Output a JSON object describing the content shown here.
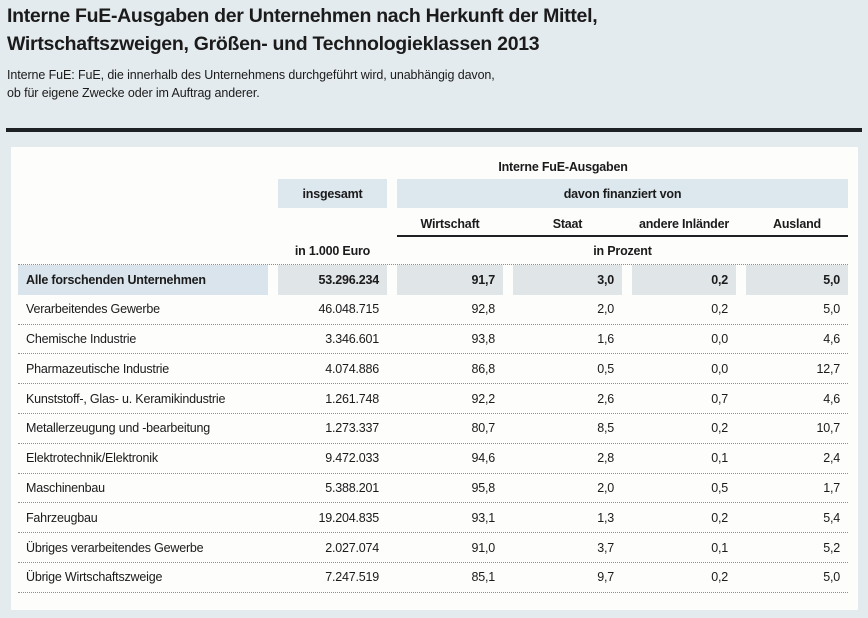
{
  "page": {
    "title_line1": "Interne FuE-Ausgaben der Unternehmen nach Herkunft der Mittel,",
    "title_line2": "Wirtschaftszweigen, Größen- und Technologieklassen 2013",
    "subtitle_line1": "Interne FuE: FuE, die innerhalb des Unternehmens durchgeführt wird, unabhängig davon,",
    "subtitle_line2": "ob für eigene Zwecke oder im Auftrag anderer."
  },
  "table": {
    "group_header": "Interne FuE-Ausgaben",
    "col_total": "insgesamt",
    "col_financed": "davon finanziert von",
    "sub_columns": [
      "Wirtschaft",
      "Staat",
      "andere Inländer",
      "Ausland"
    ],
    "unit_total": "in 1.000 Euro",
    "unit_percent": "in Prozent",
    "rows": [
      {
        "label": "Alle forschenden Unternehmen",
        "total": "53.296.234",
        "wirtschaft": "91,7",
        "staat": "3,0",
        "andere_inlaender": "0,2",
        "ausland": "5,0",
        "highlight": true
      },
      {
        "label": "Verarbeitendes Gewerbe",
        "total": "46.048.715",
        "wirtschaft": "92,8",
        "staat": "2,0",
        "andere_inlaender": "0,2",
        "ausland": "5,0",
        "highlight": false
      },
      {
        "label": "Chemische Industrie",
        "total": "3.346.601",
        "wirtschaft": "93,8",
        "staat": "1,6",
        "andere_inlaender": "0,0",
        "ausland": "4,6",
        "highlight": false
      },
      {
        "label": "Pharmazeutische Industrie",
        "total": "4.074.886",
        "wirtschaft": "86,8",
        "staat": "0,5",
        "andere_inlaender": "0,0",
        "ausland": "12,7",
        "highlight": false
      },
      {
        "label": "Kunststoff-, Glas- u. Keramikindustrie",
        "total": "1.261.748",
        "wirtschaft": "92,2",
        "staat": "2,6",
        "andere_inlaender": "0,7",
        "ausland": "4,6",
        "highlight": false
      },
      {
        "label": "Metallerzeugung und -bearbeitung",
        "total": "1.273.337",
        "wirtschaft": "80,7",
        "staat": "8,5",
        "andere_inlaender": "0,2",
        "ausland": "10,7",
        "highlight": false
      },
      {
        "label": "Elektrotechnik/Elektronik",
        "total": "9.472.033",
        "wirtschaft": "94,6",
        "staat": "2,8",
        "andere_inlaender": "0,1",
        "ausland": "2,4",
        "highlight": false
      },
      {
        "label": "Maschinenbau",
        "total": "5.388.201",
        "wirtschaft": "95,8",
        "staat": "2,0",
        "andere_inlaender": "0,5",
        "ausland": "1,7",
        "highlight": false
      },
      {
        "label": "Fahrzeugbau",
        "total": "19.204.835",
        "wirtschaft": "93,1",
        "staat": "1,3",
        "andere_inlaender": "0,2",
        "ausland": "5,4",
        "highlight": false
      },
      {
        "label": "Übriges verarbeitendes Gewerbe",
        "total": "2.027.074",
        "wirtschaft": "91,0",
        "staat": "3,7",
        "andere_inlaender": "0,1",
        "ausland": "5,2",
        "highlight": false
      },
      {
        "label": "Übrige Wirtschaftszweige",
        "total": "7.247.519",
        "wirtschaft": "85,1",
        "staat": "9,7",
        "andere_inlaender": "0,2",
        "ausland": "5,0",
        "highlight": false
      }
    ]
  },
  "colors": {
    "page_background": "#e4ebee",
    "panel_background": "#fdfdfc",
    "header_cell": "#dce7ee",
    "highlight_label": "#d9e4ec",
    "highlight_value": "#e0e5e8",
    "rule": "#1d2124",
    "text": "#1b1b1b",
    "dotted": "#8a9093"
  }
}
